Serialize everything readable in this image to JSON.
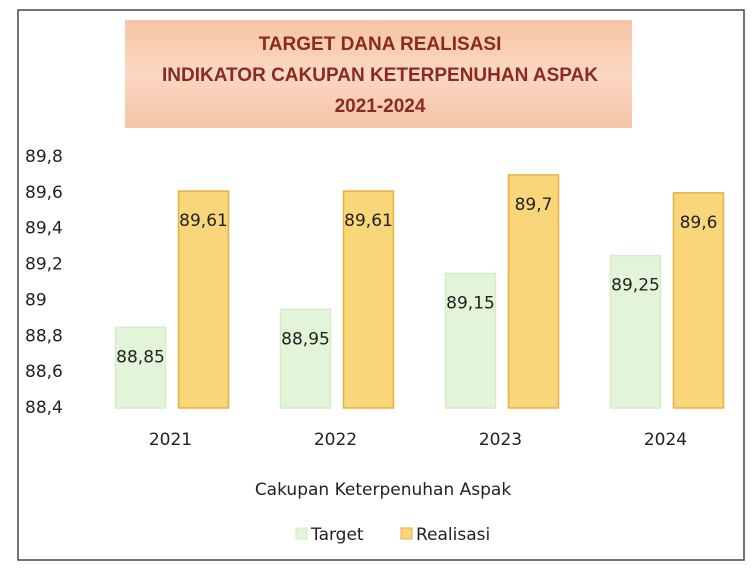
{
  "chart_data": {
    "type": "bar",
    "title": [
      "TARGET DANA REALISASI",
      "INDIKATOR CAKUPAN KETERPENUHAN ASPAK",
      "2021-2024"
    ],
    "x_label": "Cakupan Keterpenuhan Aspak",
    "categories": [
      "2021",
      "2022",
      "2023",
      "2024"
    ],
    "series": [
      {
        "name": "Target",
        "color": "#e3f5d9",
        "values": [
          88.85,
          88.95,
          89.15,
          89.25
        ],
        "value_labels": [
          "88,85",
          "88,95",
          "89,15",
          "89,25"
        ]
      },
      {
        "name": "Realisasi",
        "color": "#f9d67a",
        "values": [
          89.61,
          89.61,
          89.7,
          89.6
        ],
        "value_labels": [
          "89,61",
          "89,61",
          "89,7",
          "89,6"
        ]
      }
    ],
    "ylim": [
      88.4,
      89.8
    ],
    "yticks": [
      {
        "value": 88.4,
        "label": "88,4"
      },
      {
        "value": 88.6,
        "label": "88,6"
      },
      {
        "value": 88.8,
        "label": "88,8"
      },
      89,
      {
        "value": 89.2,
        "label": "89,2"
      },
      {
        "value": 89.4,
        "label": "89,4"
      },
      {
        "value": 89.6,
        "label": "89,6"
      },
      {
        "value": 89.8,
        "label": "89,8"
      }
    ],
    "grid": false,
    "legend": "bottom"
  }
}
